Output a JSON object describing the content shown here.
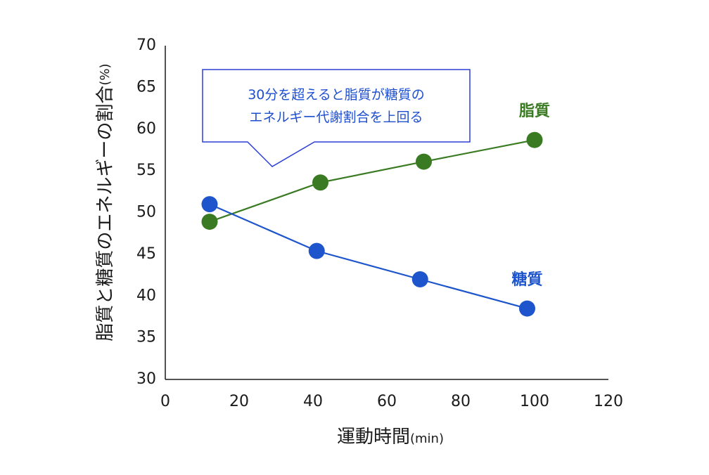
{
  "chart_data": {
    "type": "line",
    "xlabel": "運動時間",
    "xunit": "(min)",
    "ylabel": "脂質と糖質のエネルギーの割合",
    "yunit": "(%)",
    "xlim": [
      0,
      120
    ],
    "ylim": [
      30,
      70
    ],
    "xticks": [
      0,
      20,
      40,
      60,
      80,
      100,
      120
    ],
    "yticks": [
      30,
      35,
      40,
      45,
      50,
      55,
      60,
      65,
      70
    ],
    "grid": false,
    "series": [
      {
        "name": "脂質",
        "color": "#3a7a22",
        "x": [
          12,
          42,
          70,
          100
        ],
        "y": [
          48.9,
          53.6,
          56.1,
          58.7
        ]
      },
      {
        "name": "糖質",
        "color": "#1e55cc",
        "x": [
          12,
          41,
          69,
          98
        ],
        "y": [
          51.0,
          45.4,
          42.0,
          38.5
        ]
      }
    ],
    "annotation": {
      "lines": [
        "30分を超えると脂質が糖質の",
        "エネルギー代謝割合を上回る"
      ],
      "color": "#1e4fd0"
    }
  }
}
